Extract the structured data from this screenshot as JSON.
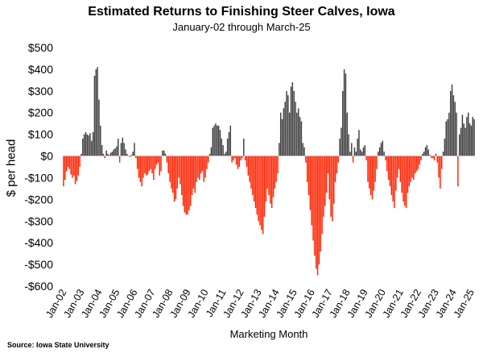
{
  "chart_data": {
    "type": "bar",
    "title": "Estimated Returns to Finishing Steer Calves, Iowa",
    "subtitle": "January-02 through March-25",
    "xlabel": "Marketing Month",
    "ylabel": "$ per head",
    "ylim": [
      -600,
      500
    ],
    "yticks": [
      500,
      400,
      300,
      200,
      100,
      0,
      -100,
      -200,
      -300,
      -400,
      -500,
      -600
    ],
    "ytick_labels": [
      "$500",
      "$400",
      "$300",
      "$200",
      "$100",
      "$0",
      "-$100",
      "-$200",
      "-$300",
      "-$400",
      "-$500",
      "-$600"
    ],
    "xtick_labels": [
      "Jan-02",
      "Jan-03",
      "Jan-04",
      "Jan-05",
      "Jan-06",
      "Jan-07",
      "Jan-08",
      "Jan-09",
      "Jan-10",
      "Jan-11",
      "Jan-12",
      "Jan-13",
      "Jan-14",
      "Jan-15",
      "Jan-16",
      "Jan-17",
      "Jan-18",
      "Jan-19",
      "Jan-20",
      "Jan-21",
      "Jan-22",
      "Jan-23",
      "Jan-24",
      "Jan-25"
    ],
    "start": "Jan-02",
    "end": "Mar-25",
    "positive_color": "#404040",
    "negative_color": "#ff2200",
    "series": [
      {
        "name": "2002",
        "values": [
          -140,
          -110,
          -70,
          -50,
          -60,
          -85,
          -100,
          -90,
          -130,
          -115,
          -90,
          -50
        ]
      },
      {
        "name": "2003",
        "values": [
          10,
          80,
          100,
          110,
          100,
          95,
          105,
          70,
          110,
          370,
          400,
          410
        ]
      },
      {
        "name": "2004",
        "values": [
          260,
          140,
          50,
          10,
          -10,
          25,
          10,
          5,
          15,
          20,
          30,
          35
        ]
      },
      {
        "name": "2005",
        "values": [
          45,
          80,
          -30,
          60,
          85,
          60,
          30,
          10,
          0,
          -5,
          5,
          20
        ]
      },
      {
        "name": "2006",
        "values": [
          60,
          -10,
          -60,
          -100,
          -120,
          -140,
          -100,
          -80,
          -90,
          -85,
          -70,
          -60
        ]
      },
      {
        "name": "2007",
        "values": [
          -80,
          -110,
          -60,
          -40,
          -30,
          -90,
          -70,
          25,
          25,
          10,
          -30,
          -80
        ]
      },
      {
        "name": "2008",
        "values": [
          -120,
          -150,
          -170,
          -210,
          -200,
          -150,
          -100,
          -130,
          -180,
          -230,
          -260,
          -270
        ]
      },
      {
        "name": "2009",
        "values": [
          -270,
          -250,
          -230,
          -180,
          -150,
          -170,
          -120,
          -100,
          -110,
          -80,
          -70,
          -120
        ]
      },
      {
        "name": "2010",
        "values": [
          -100,
          -60,
          -30,
          10,
          40,
          130,
          140,
          150,
          140,
          140,
          120,
          80
        ]
      },
      {
        "name": "2011",
        "values": [
          50,
          10,
          20,
          80,
          110,
          140,
          -30,
          -20,
          -10,
          -40,
          -60,
          -50
        ]
      },
      {
        "name": "2012",
        "values": [
          -20,
          -10,
          80,
          -20,
          -50,
          -90,
          -120,
          -150,
          -180,
          -210,
          -240,
          -270
        ]
      },
      {
        "name": "2013",
        "values": [
          -300,
          -320,
          -340,
          -360,
          -280,
          -210,
          -150,
          -180,
          -220,
          -240,
          -190,
          -150
        ]
      },
      {
        "name": "2014",
        "values": [
          -120,
          -80,
          60,
          200,
          170,
          220,
          250,
          300,
          280,
          200,
          320,
          340
        ]
      },
      {
        "name": "2015",
        "values": [
          300,
          250,
          200,
          220,
          180,
          160,
          60,
          40,
          -30,
          -120,
          -180,
          -250
        ]
      },
      {
        "name": "2016",
        "values": [
          -320,
          -390,
          -460,
          -520,
          -550,
          -500,
          -440,
          -360,
          -280,
          -230,
          -170,
          -80
        ]
      },
      {
        "name": "2017",
        "values": [
          -200,
          -280,
          -300,
          -220,
          -120,
          -80,
          -30,
          80,
          130,
          300,
          400,
          380
        ]
      },
      {
        "name": "2018",
        "values": [
          200,
          100,
          20,
          60,
          -30,
          40,
          20,
          80,
          120,
          30,
          20,
          40
        ]
      },
      {
        "name": "2019",
        "values": [
          50,
          -20,
          -120,
          -150,
          -180,
          -200,
          -160,
          -120,
          -60,
          20,
          40,
          60
        ]
      },
      {
        "name": "2020",
        "values": [
          70,
          20,
          -20,
          -70,
          -110,
          -140,
          -180,
          -210,
          -240,
          -160,
          -100,
          -60
        ]
      },
      {
        "name": "2021",
        "values": [
          -120,
          -170,
          -210,
          -230,
          -240,
          -170,
          -140,
          -120,
          -100,
          -110,
          -80,
          -70
        ]
      },
      {
        "name": "2022",
        "values": [
          -60,
          -40,
          -20,
          10,
          20,
          40,
          50,
          30,
          5,
          -10,
          -10,
          -20
        ]
      },
      {
        "name": "2023",
        "values": [
          10,
          -30,
          -100,
          -150,
          -60,
          20,
          80,
          160,
          170,
          200,
          300,
          330
        ]
      },
      {
        "name": "2024",
        "values": [
          280,
          250,
          200,
          -140,
          100,
          130,
          190,
          150,
          130,
          180,
          200,
          150
        ]
      },
      {
        "name": "2025",
        "values": [
          140,
          180,
          170
        ]
      }
    ]
  },
  "source": "Source: Iowa State University"
}
